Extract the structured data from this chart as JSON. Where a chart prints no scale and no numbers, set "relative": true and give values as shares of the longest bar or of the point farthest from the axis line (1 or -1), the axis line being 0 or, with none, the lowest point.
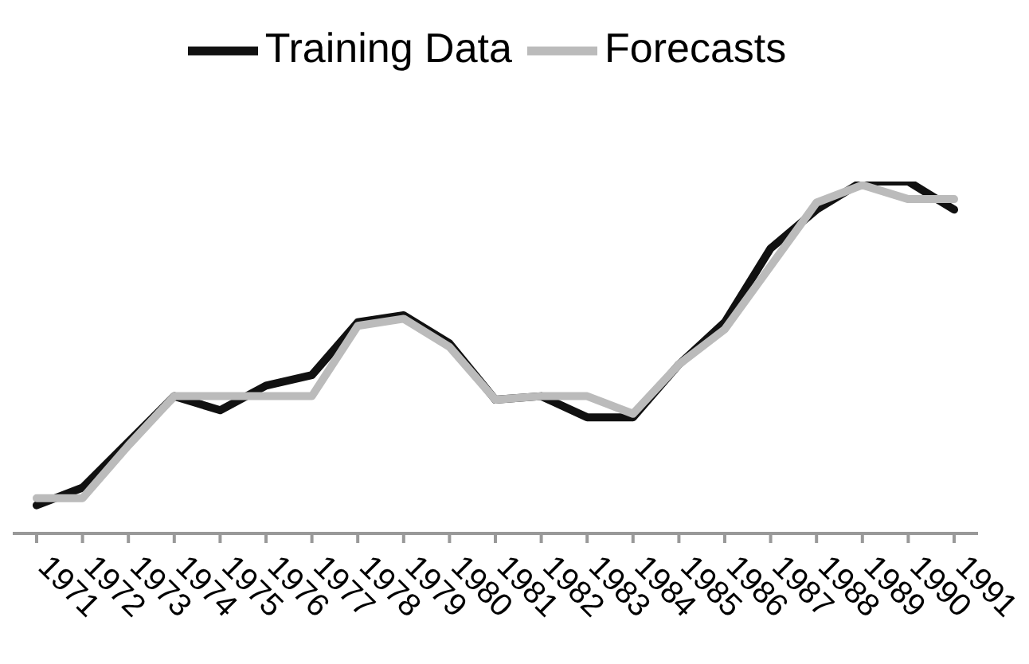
{
  "chart_data": {
    "type": "line",
    "relative": true,
    "legend": "top",
    "marker": "none",
    "line_style": "solid",
    "categories": [
      "1971",
      "1972",
      "1973",
      "1974",
      "1975",
      "1976",
      "1977",
      "1978",
      "1979",
      "1980",
      "1981",
      "1982",
      "1983",
      "1984",
      "1985",
      "1986",
      "1987",
      "1988",
      "1989",
      "1990",
      "1991"
    ],
    "series": [
      {
        "name": "Training Data",
        "color": "#111111",
        "values": [
          0.08,
          0.13,
          0.26,
          0.39,
          0.35,
          0.42,
          0.45,
          0.6,
          0.62,
          0.54,
          0.38,
          0.39,
          0.33,
          0.33,
          0.48,
          0.6,
          0.81,
          0.92,
          1,
          1,
          0.92
        ]
      },
      {
        "name": "Forecasts",
        "color": "#bbbbbb",
        "values": [
          0.1,
          0.1,
          0.25,
          0.39,
          0.39,
          0.39,
          0.39,
          0.59,
          0.61,
          0.53,
          0.38,
          0.39,
          0.39,
          0.34,
          0.48,
          0.58,
          0.76,
          0.94,
          0.99,
          0.95,
          0.95
        ]
      }
    ]
  }
}
